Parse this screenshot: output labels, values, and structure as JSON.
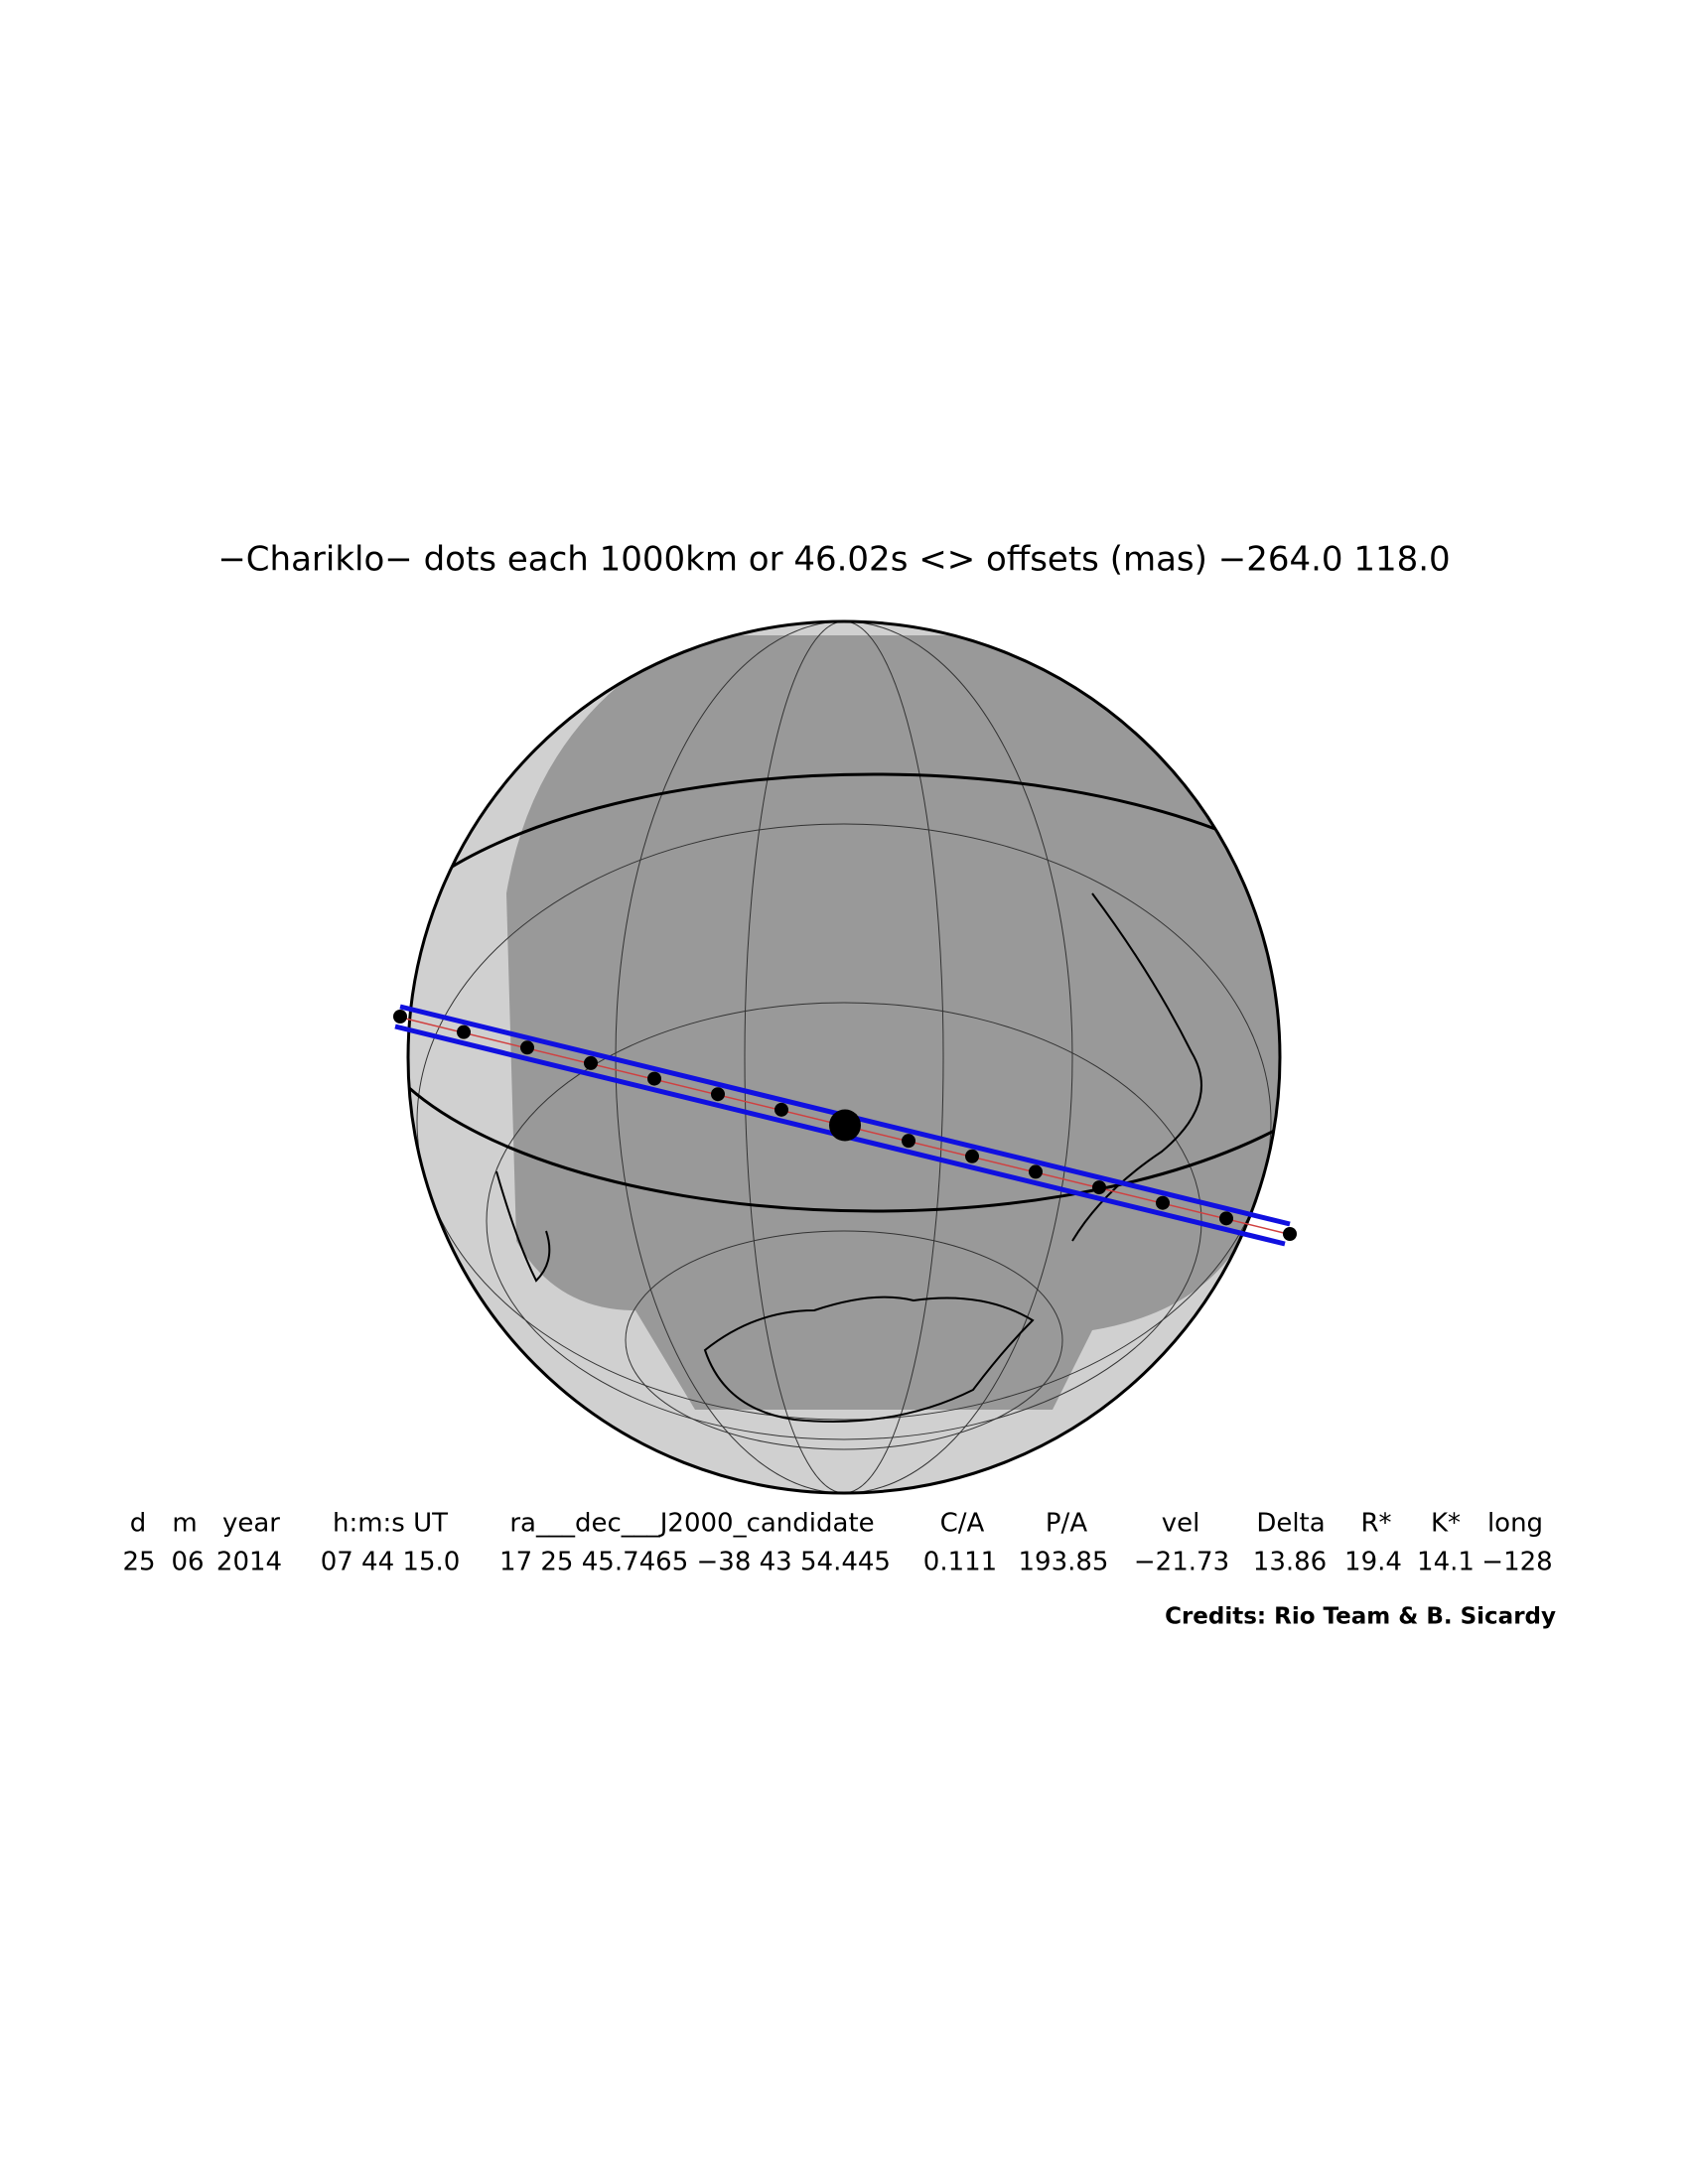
{
  "title": "−Chariklo− dots each 1000km or 46.02s <> offsets (mas) −264.0  118.0",
  "table": {
    "headers": [
      "d",
      "m",
      "year",
      "h:m:s UT",
      "ra___dec___J2000_candidate",
      "C/A",
      "P/A",
      "vel",
      "Delta",
      "R*",
      "K*",
      "long"
    ],
    "rows": [
      [
        "25",
        "06",
        "2014",
        "07 44 15.0",
        "17 25 45.7465 −38 43 54.445",
        "0.111",
        "193.85",
        "−21.73",
        "13.86",
        "19.4",
        "14.1",
        "−128"
      ]
    ]
  },
  "credits": "Credits: Rio Team & B. Sicardy"
}
